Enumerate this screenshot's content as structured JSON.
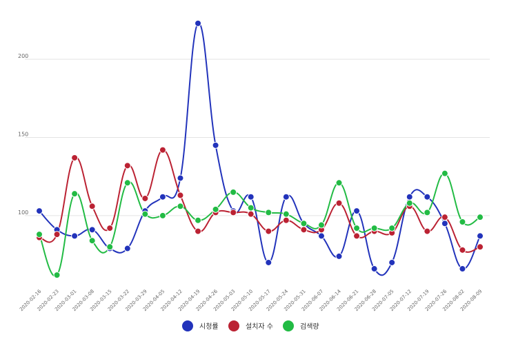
{
  "chart_data": {
    "type": "line",
    "title": "",
    "xlabel": "",
    "ylabel": "",
    "smooth": true,
    "grid": true,
    "legend_position": "bottom",
    "ylim": [
      55,
      230
    ],
    "yticks": [
      100,
      150,
      200
    ],
    "categories": [
      "2020-02-16",
      "2020-02-23",
      "2020-03-01",
      "2020-03-08",
      "2020-03-15",
      "2020-03-22",
      "2020-03-29",
      "2020-04-05",
      "2020-04-12",
      "2020-04-19",
      "2020-04-26",
      "2020-05-03",
      "2020-05-10",
      "2020-05-17",
      "2020-05-24",
      "2020-05-31",
      "2020-06-07",
      "2020-06-14",
      "2020-06-21",
      "2020-06-28",
      "2020-07-05",
      "2020-07-12",
      "2020-07-19",
      "2020-07-26",
      "2020-08-02",
      "2020-08-09"
    ],
    "series": [
      {
        "name": "시청률",
        "color": "#2233bb",
        "values": [
          103,
          91,
          87,
          91,
          79,
          79,
          103,
          112,
          124,
          223,
          145,
          103,
          112,
          70,
          112,
          95,
          87,
          74,
          103,
          66,
          70,
          112,
          112,
          95,
          66,
          87
        ]
      },
      {
        "name": "설치자 수",
        "color": "#bb2233",
        "values": [
          86,
          88,
          137,
          106,
          92,
          132,
          111,
          142,
          113,
          90,
          102,
          102,
          101,
          90,
          97,
          91,
          91,
          108,
          87,
          90,
          89,
          106,
          90,
          99,
          78,
          80
        ]
      },
      {
        "name": "검색량",
        "color": "#22bb44",
        "values": [
          88,
          62,
          114,
          84,
          80,
          121,
          101,
          100,
          106,
          97,
          104,
          115,
          105,
          102,
          101,
          95,
          94,
          121,
          92,
          92,
          92,
          108,
          102,
          127,
          96,
          99
        ]
      }
    ]
  }
}
